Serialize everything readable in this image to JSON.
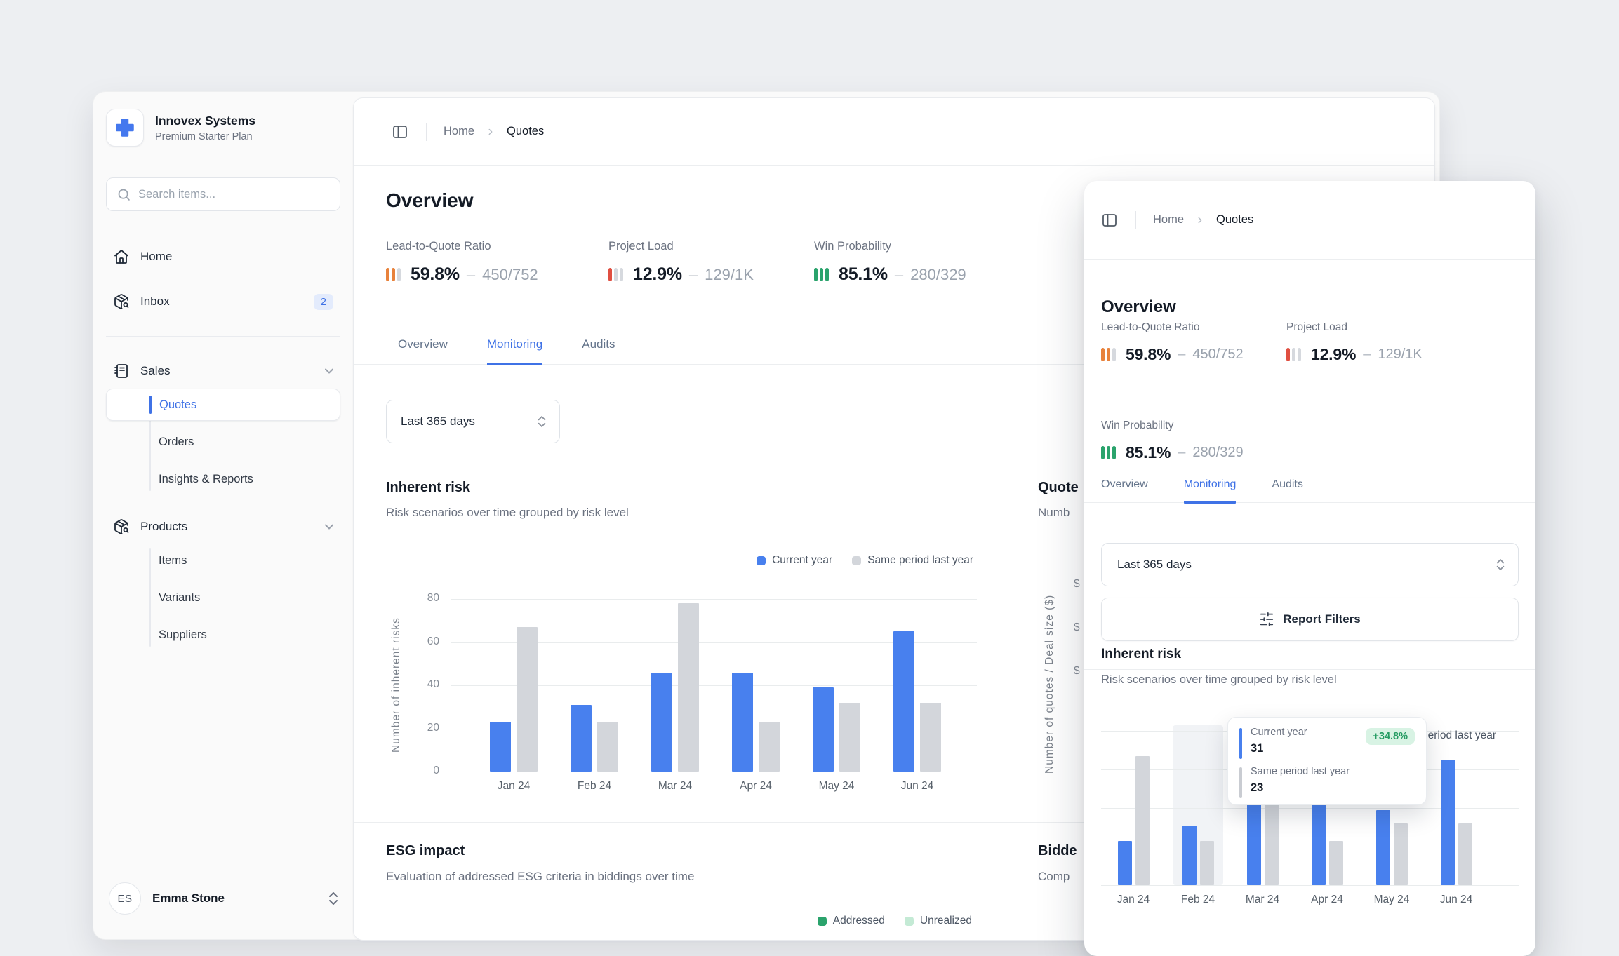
{
  "theme": {
    "accent": "#3f72e6",
    "bar_blue": "#4880ee",
    "bar_gray": "#d3d6db",
    "green": "#2aa36c",
    "orange": "#e8823c",
    "red": "#e04f41"
  },
  "sidebar": {
    "brand": {
      "name": "Innovex Systems",
      "plan": "Premium Starter Plan"
    },
    "search": {
      "placeholder": "Search items..."
    },
    "items": [
      {
        "label": "Home"
      },
      {
        "label": "Inbox",
        "badge": "2"
      }
    ],
    "groups": [
      {
        "label": "Sales",
        "items": [
          {
            "label": "Quotes",
            "active": true
          },
          {
            "label": "Orders"
          },
          {
            "label": "Insights & Reports"
          }
        ]
      },
      {
        "label": "Products",
        "items": [
          {
            "label": "Items"
          },
          {
            "label": "Variants"
          },
          {
            "label": "Suppliers"
          }
        ]
      }
    ],
    "user": {
      "initials": "ES",
      "name": "Emma Stone"
    }
  },
  "breadcrumb": {
    "home": "Home",
    "current": "Quotes"
  },
  "page_title": "Overview",
  "kpis": [
    {
      "label": "Lead-to-Quote Ratio",
      "value": "59.8%",
      "sep": "–",
      "detail": "450/752",
      "bar_colors": [
        "#e8823c",
        "#e8823c",
        "#d6d9de"
      ]
    },
    {
      "label": "Project Load",
      "value": "12.9%",
      "sep": "–",
      "detail": "129/1K",
      "bar_colors": [
        "#e04f41",
        "#d6d9de",
        "#d6d9de"
      ]
    },
    {
      "label": "Win Probability",
      "value": "85.1%",
      "sep": "–",
      "detail": "280/329",
      "bar_colors": [
        "#2aa36c",
        "#2aa36c",
        "#2aa36c"
      ]
    }
  ],
  "tabs": [
    {
      "label": "Overview",
      "active": false
    },
    {
      "label": "Monitoring",
      "active": true
    },
    {
      "label": "Audits",
      "active": false
    }
  ],
  "filter": {
    "value": "Last 365 days"
  },
  "report_filters_label": "Report Filters",
  "sections": {
    "inherent": {
      "title": "Inherent risk",
      "subtitle": "Risk scenarios over time grouped by risk level"
    },
    "esg": {
      "title": "ESG impact",
      "subtitle": "Evaluation of addressed ESG criteria in biddings over time",
      "legend": [
        {
          "label": "Addressed",
          "color": "#2aa36c"
        },
        {
          "label": "Unrealized",
          "color": "#c4ead5"
        }
      ]
    },
    "quotes_partial": {
      "title_fragment": "Quote",
      "subtitle_fragment": "Numb",
      "ylabel": "Number of quotes / Deal size ($)",
      "ytick_fragments": [
        "$",
        "$",
        "$"
      ]
    },
    "bidders_partial": {
      "title_fragment": "Bidde",
      "subtitle_fragment": "Comp"
    }
  },
  "tooltip": {
    "rows": [
      {
        "label": "Current year",
        "value": "31",
        "color": "#4880ee"
      },
      {
        "label": "Same period last year",
        "value": "23",
        "color": "#c9ccd2"
      }
    ],
    "badge": "+34.8%",
    "badge_bg": "#d8f3e4",
    "badge_color": "#259c63"
  },
  "chart_data": {
    "type": "bar",
    "title": "Inherent risk",
    "subtitle": "Risk scenarios over time grouped by risk level",
    "categories": [
      "Jan 24",
      "Feb 24",
      "Mar 24",
      "Apr 24",
      "May 24",
      "Jun 24"
    ],
    "series": [
      {
        "name": "Current year",
        "color": "#4880ee",
        "values": [
          23,
          31,
          46,
          46,
          39,
          65
        ]
      },
      {
        "name": "Same period last year",
        "color": "#d3d6db",
        "values": [
          67,
          23,
          78,
          23,
          32,
          32
        ]
      }
    ],
    "ylabel": "Number of inherent risks",
    "yticks": [
      0,
      20,
      40,
      60,
      80
    ],
    "ylim": [
      0,
      80
    ],
    "grid": true,
    "legend_position": "top-right",
    "hover": {
      "category": "Feb 24",
      "current": 31,
      "previous": 23,
      "delta": "+34.8%"
    }
  }
}
